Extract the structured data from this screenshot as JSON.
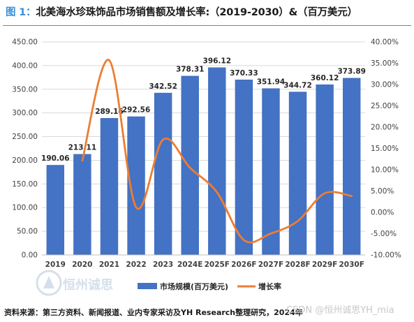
{
  "header": {
    "label": "图 1：",
    "title": "北美海水珍珠饰品市场销售额及增长率:（2019-2030）&（百万美元）"
  },
  "chart_data": {
    "type": "bar",
    "categories": [
      "2019",
      "2020",
      "2021",
      "2022",
      "2023",
      "2024E",
      "2025F",
      "2026F",
      "2027F",
      "2028F",
      "2029F",
      "2030F"
    ],
    "series": [
      {
        "name": "市场规模(百万美元)",
        "type": "bar",
        "axis": "left",
        "color": "#4472c4",
        "values": [
          190.06,
          213.11,
          289.16,
          292.56,
          342.52,
          378.31,
          396.12,
          370.33,
          351.94,
          344.72,
          360.12,
          373.89
        ],
        "labels": [
          "190.06",
          "213.11",
          "289.16",
          "292.56",
          "342.52",
          "378.31",
          "396.12",
          "370.33",
          "351.94",
          "344.72",
          "360.12",
          "373.89"
        ]
      },
      {
        "name": "增长率",
        "type": "line",
        "axis": "right",
        "color": "#ed7d31",
        "values": [
          null,
          12.13,
          35.69,
          1.18,
          17.08,
          10.45,
          4.71,
          -6.51,
          -4.97,
          -2.05,
          4.47,
          3.82
        ]
      }
    ],
    "y_left": {
      "min": 0,
      "max": 450,
      "step": 50,
      "tick_labels": [
        "0.00",
        "50.00",
        "100.00",
        "150.00",
        "200.00",
        "250.00",
        "300.00",
        "350.00",
        "400.00",
        "450.00"
      ]
    },
    "y_right": {
      "min": -10,
      "max": 40,
      "step": 5,
      "tick_labels": [
        "-10.00%",
        "-5.00%",
        "0.00%",
        "5.00%",
        "10.00%",
        "15.00%",
        "20.00%",
        "25.00%",
        "30.00%",
        "35.00%",
        "40.00%"
      ]
    },
    "grid": true,
    "legend_position": "bottom"
  },
  "source_note": "资料来源：第三方资料、新闻报道、业内专家采访及YH Research整理研究，2024年",
  "watermark": "CSDN @恒州诚思YH_mia",
  "logo_text": "恒州诚思"
}
